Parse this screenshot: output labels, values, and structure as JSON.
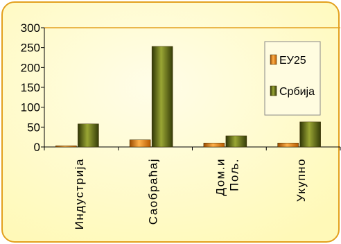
{
  "chart_data": {
    "type": "bar",
    "categories": [
      "Индустрија",
      "Саобраћај",
      "Дом.и\nПољ.",
      "Укупно"
    ],
    "series": [
      {
        "name": "ЕУ25",
        "values": [
          3,
          18,
          10,
          10
        ],
        "color": "#f08a10"
      },
      {
        "name": "Србија",
        "values": [
          58,
          253,
          28,
          63
        ],
        "color": "#6f7a12"
      }
    ],
    "ylim": [
      0,
      300
    ],
    "yticks": [
      0,
      50,
      100,
      150,
      200,
      250,
      300
    ],
    "grid": false,
    "legend_position": "right",
    "background": "#fff9b8",
    "border_color": "#e3a01e"
  }
}
